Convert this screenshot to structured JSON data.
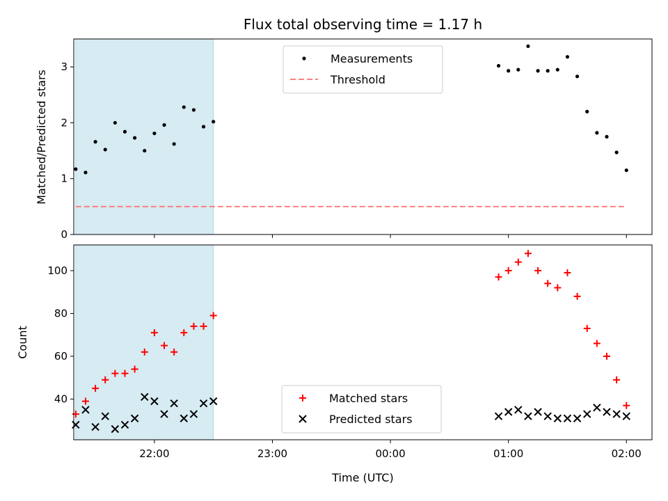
{
  "chart_data": {
    "type": "scatter",
    "title": "Flux total observing time = 1.17 h",
    "xlabel": "Time (UTC)",
    "xlim": [
      "21:19",
      "02:13"
    ],
    "xticks": [
      "22:00",
      "23:00",
      "00:00",
      "01:00",
      "02:00"
    ],
    "shaded_interval": [
      "21:20",
      "22:30"
    ],
    "shade_color": "#add8e6",
    "panels": [
      {
        "id": "top",
        "ylabel": "Matched/Predicted stars",
        "ylim": [
          0,
          3.5
        ],
        "yticks": [
          0,
          1,
          2,
          3
        ],
        "legend": "top-center",
        "series": [
          {
            "name": "Measurements",
            "kind": "dot",
            "color": "#000000",
            "points": [
              [
                "21:20",
                1.17
              ],
              [
                "21:25",
                1.11
              ],
              [
                "21:30",
                1.66
              ],
              [
                "21:35",
                1.52
              ],
              [
                "21:40",
                2.0
              ],
              [
                "21:45",
                1.84
              ],
              [
                "21:50",
                1.73
              ],
              [
                "21:55",
                1.5
              ],
              [
                "22:00",
                1.81
              ],
              [
                "22:05",
                1.96
              ],
              [
                "22:10",
                1.62
              ],
              [
                "22:15",
                2.28
              ],
              [
                "22:20",
                2.23
              ],
              [
                "22:25",
                1.93
              ],
              [
                "22:30",
                2.02
              ],
              [
                "00:55",
                3.02
              ],
              [
                "01:00",
                2.93
              ],
              [
                "01:05",
                2.95
              ],
              [
                "01:10",
                3.37
              ],
              [
                "01:15",
                2.93
              ],
              [
                "01:20",
                2.93
              ],
              [
                "01:25",
                2.95
              ],
              [
                "01:30",
                3.18
              ],
              [
                "01:35",
                2.83
              ],
              [
                "01:40",
                2.2
              ],
              [
                "01:45",
                1.82
              ],
              [
                "01:50",
                1.75
              ],
              [
                "01:55",
                1.47
              ],
              [
                "02:00",
                1.15
              ]
            ]
          },
          {
            "name": "Threshold",
            "kind": "dashed-line",
            "color": "#ff7f7f",
            "points": [
              [
                "21:20",
                0.5
              ],
              [
                "02:00",
                0.5
              ]
            ]
          }
        ]
      },
      {
        "id": "bottom",
        "ylabel": "Count",
        "ylim": [
          21,
          112
        ],
        "yticks": [
          40,
          60,
          80,
          100
        ],
        "legend": "bottom-center",
        "series": [
          {
            "name": "Matched stars",
            "kind": "plus",
            "color": "#ff0000",
            "points": [
              [
                "21:20",
                33
              ],
              [
                "21:25",
                39
              ],
              [
                "21:30",
                45
              ],
              [
                "21:35",
                49
              ],
              [
                "21:40",
                52
              ],
              [
                "21:45",
                52
              ],
              [
                "21:50",
                54
              ],
              [
                "21:55",
                62
              ],
              [
                "22:00",
                71
              ],
              [
                "22:05",
                65
              ],
              [
                "22:10",
                62
              ],
              [
                "22:15",
                71
              ],
              [
                "22:20",
                74
              ],
              [
                "22:25",
                74
              ],
              [
                "22:30",
                79
              ],
              [
                "00:55",
                97
              ],
              [
                "01:00",
                100
              ],
              [
                "01:05",
                104
              ],
              [
                "01:10",
                108
              ],
              [
                "01:15",
                100
              ],
              [
                "01:20",
                94
              ],
              [
                "01:25",
                92
              ],
              [
                "01:30",
                99
              ],
              [
                "01:35",
                88
              ],
              [
                "01:40",
                73
              ],
              [
                "01:45",
                66
              ],
              [
                "01:50",
                60
              ],
              [
                "01:55",
                49
              ],
              [
                "02:00",
                37
              ]
            ]
          },
          {
            "name": "Predicted stars",
            "kind": "x",
            "color": "#000000",
            "points": [
              [
                "21:20",
                28
              ],
              [
                "21:25",
                35
              ],
              [
                "21:30",
                27
              ],
              [
                "21:35",
                32
              ],
              [
                "21:40",
                26
              ],
              [
                "21:45",
                28
              ],
              [
                "21:50",
                31
              ],
              [
                "21:55",
                41
              ],
              [
                "22:00",
                39
              ],
              [
                "22:05",
                33
              ],
              [
                "22:10",
                38
              ],
              [
                "22:15",
                31
              ],
              [
                "22:20",
                33
              ],
              [
                "22:25",
                38
              ],
              [
                "22:30",
                39
              ],
              [
                "00:55",
                32
              ],
              [
                "01:00",
                34
              ],
              [
                "01:05",
                35
              ],
              [
                "01:10",
                32
              ],
              [
                "01:15",
                34
              ],
              [
                "01:20",
                32
              ],
              [
                "01:25",
                31
              ],
              [
                "01:30",
                31
              ],
              [
                "01:35",
                31
              ],
              [
                "01:40",
                33
              ],
              [
                "01:45",
                36
              ],
              [
                "01:50",
                34
              ],
              [
                "01:55",
                33
              ],
              [
                "02:00",
                32
              ]
            ]
          }
        ]
      }
    ]
  }
}
